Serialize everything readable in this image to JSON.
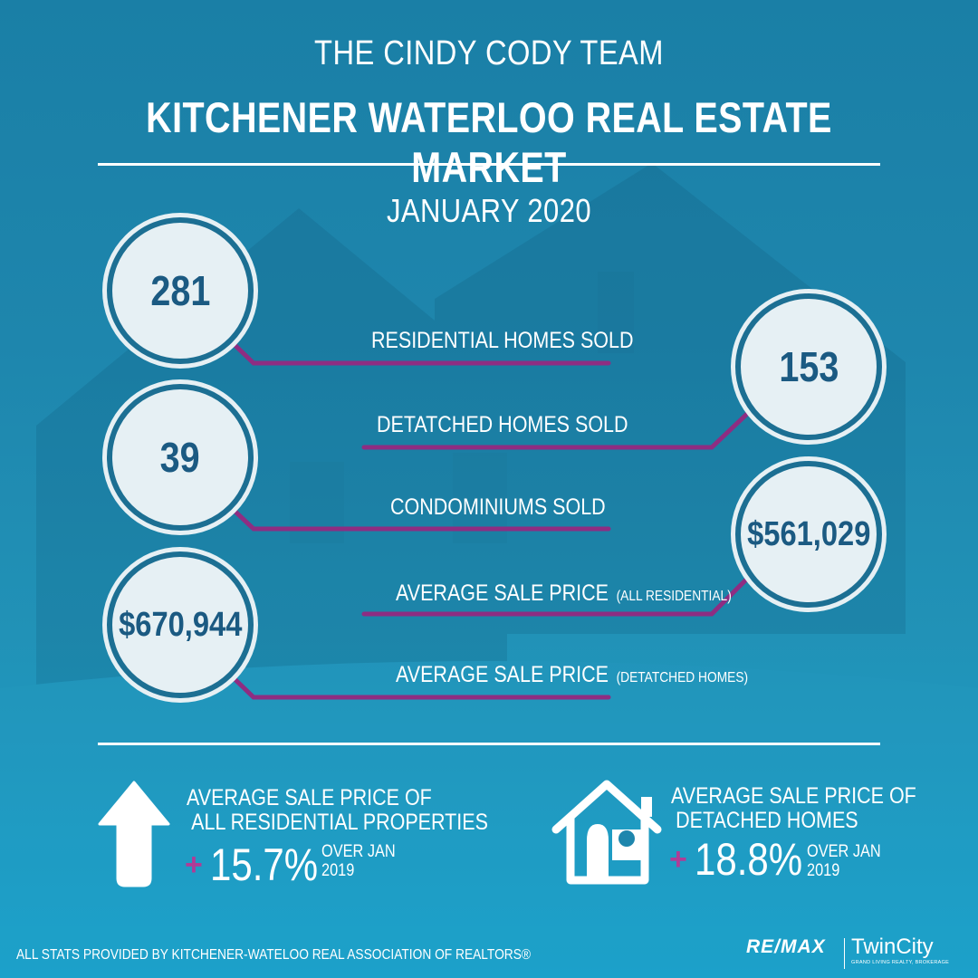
{
  "header": {
    "team_name": "THE CINDY CODY TEAM",
    "title": "KITCHENER WATERLOO REAL ESTATE MARKET",
    "month": "JANUARY 2020"
  },
  "stats": {
    "residential_sold": {
      "value": "281",
      "label": "RESIDENTIAL HOMES SOLD"
    },
    "detached_sold": {
      "value": "153",
      "label": "DETATCHED HOMES SOLD"
    },
    "condos_sold": {
      "value": "39",
      "label": "CONDOMINIUMS SOLD"
    },
    "avg_all_residential": {
      "value": "$561,029",
      "label": "AVERAGE SALE PRICE",
      "qualifier": "(ALL RESIDENTIAL)"
    },
    "avg_detached": {
      "value": "$670,944",
      "label": "AVERAGE SALE PRICE",
      "qualifier": "(DETATCHED HOMES)"
    }
  },
  "changes": {
    "residential": {
      "heading_line1": "AVERAGE SALE PRICE OF",
      "heading_line2": "ALL RESIDENTIAL PROPERTIES",
      "sign": "+",
      "percent": "15.7%",
      "over_line1": "OVER JAN",
      "over_line2": "2019",
      "icon": "up-arrow-icon"
    },
    "detached": {
      "heading_line1": "AVERAGE SALE PRICE OF",
      "heading_line2": "DETACHED HOMES",
      "sign": "+",
      "percent": "18.8%",
      "over_line1": "OVER JAN",
      "over_line2": "2019",
      "icon": "house-icon"
    }
  },
  "footer": {
    "source": "ALL STATS PROVIDED BY KITCHENER-WATELOO REAL ASSOCIATION OF REALTORS®",
    "brand": "RE/MAX",
    "brokerage": "TwinCity",
    "brokerage_sub": "GRAND LIVING REALTY, BROKERAGE"
  },
  "colors": {
    "background": "#1e86ad",
    "circle_fill": "#e6f0f4",
    "circle_ring": "#1c6f93",
    "number_text": "#1b5a82",
    "connector": "#8e2d82",
    "plus": "#b03c96"
  }
}
